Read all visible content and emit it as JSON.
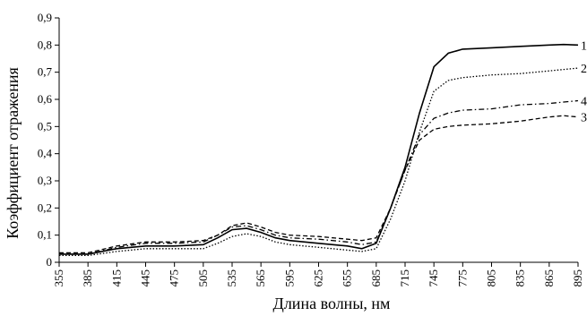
{
  "chart_data": {
    "type": "line",
    "title": "",
    "xlabel": "Длина волны, нм",
    "ylabel": "Коэффициент отражения",
    "xlim": [
      355,
      895
    ],
    "ylim": [
      0,
      0.9
    ],
    "xticks": [
      "355",
      "385",
      "415",
      "445",
      "475",
      "505",
      "535",
      "565",
      "595",
      "625",
      "655",
      "685",
      "715",
      "745",
      "775",
      "805",
      "835",
      "865",
      "895"
    ],
    "yticks": [
      "0",
      "0,1",
      "0,2",
      "0,3",
      "0,4",
      "0,5",
      "0,6",
      "0,7",
      "0,8",
      "0,9"
    ],
    "grid": false,
    "series": [
      {
        "name": "1",
        "style": "solid",
        "x": [
          355,
          385,
          415,
          445,
          475,
          505,
          520,
          535,
          550,
          565,
          580,
          595,
          625,
          655,
          670,
          685,
          700,
          715,
          730,
          745,
          760,
          775,
          805,
          835,
          865,
          880,
          895
        ],
        "y": [
          0.03,
          0.03,
          0.05,
          0.06,
          0.06,
          0.065,
          0.09,
          0.12,
          0.125,
          0.11,
          0.09,
          0.08,
          0.07,
          0.06,
          0.05,
          0.07,
          0.2,
          0.35,
          0.55,
          0.72,
          0.77,
          0.785,
          0.79,
          0.795,
          0.8,
          0.802,
          0.8
        ]
      },
      {
        "name": "2",
        "style": "dotted",
        "x": [
          355,
          385,
          415,
          445,
          475,
          505,
          520,
          535,
          550,
          565,
          580,
          595,
          625,
          655,
          670,
          685,
          700,
          715,
          730,
          745,
          760,
          775,
          805,
          835,
          865,
          880,
          895
        ],
        "y": [
          0.025,
          0.025,
          0.04,
          0.05,
          0.05,
          0.05,
          0.07,
          0.095,
          0.105,
          0.095,
          0.075,
          0.065,
          0.055,
          0.045,
          0.04,
          0.05,
          0.16,
          0.3,
          0.48,
          0.63,
          0.67,
          0.68,
          0.69,
          0.695,
          0.705,
          0.71,
          0.715
        ]
      },
      {
        "name": "3",
        "style": "dashed",
        "x": [
          355,
          385,
          415,
          445,
          475,
          505,
          520,
          535,
          550,
          565,
          580,
          595,
          625,
          655,
          670,
          685,
          700,
          715,
          730,
          745,
          760,
          775,
          805,
          835,
          865,
          880,
          895
        ],
        "y": [
          0.035,
          0.035,
          0.06,
          0.075,
          0.075,
          0.08,
          0.1,
          0.135,
          0.145,
          0.13,
          0.11,
          0.1,
          0.095,
          0.085,
          0.08,
          0.09,
          0.2,
          0.34,
          0.45,
          0.49,
          0.5,
          0.505,
          0.51,
          0.52,
          0.535,
          0.54,
          0.535
        ]
      },
      {
        "name": "4",
        "style": "dash-dot",
        "x": [
          355,
          385,
          415,
          445,
          475,
          505,
          520,
          535,
          550,
          565,
          580,
          595,
          625,
          655,
          670,
          685,
          700,
          715,
          730,
          745,
          760,
          775,
          805,
          835,
          865,
          880,
          895
        ],
        "y": [
          0.03,
          0.03,
          0.055,
          0.07,
          0.07,
          0.075,
          0.1,
          0.13,
          0.135,
          0.12,
          0.1,
          0.09,
          0.085,
          0.075,
          0.065,
          0.075,
          0.2,
          0.34,
          0.47,
          0.53,
          0.55,
          0.56,
          0.565,
          0.58,
          0.585,
          0.59,
          0.595
        ]
      }
    ]
  }
}
